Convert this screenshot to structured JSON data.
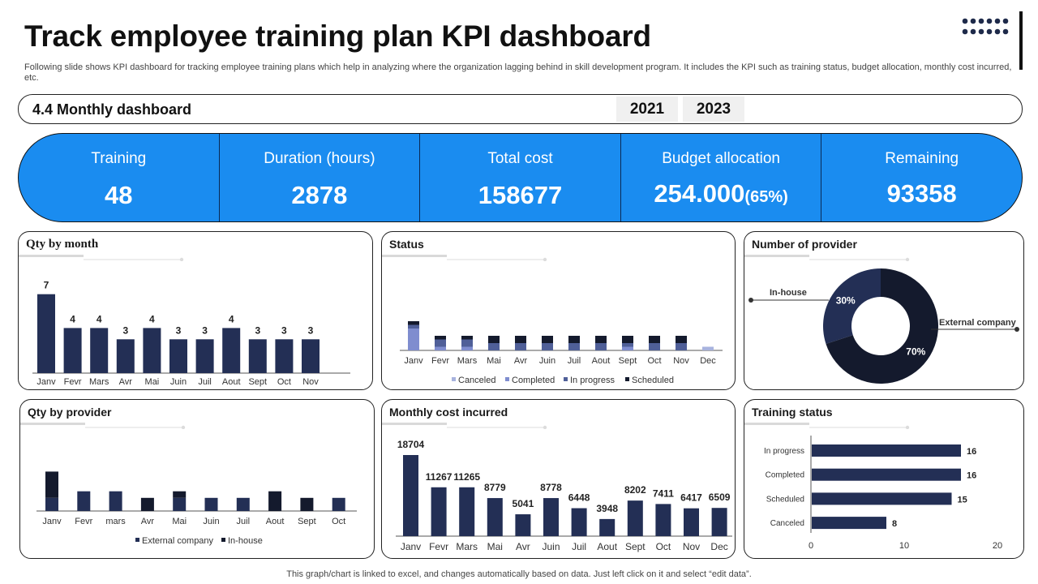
{
  "title": "Track employee training plan KPI dashboard",
  "subtitle": "Following slide shows KPI dashboard for tracking employee training plans which help in analyzing where the organization lagging behind in skill development program. It includes the KPI such as training status, budget allocation, monthly cost incurred, etc.",
  "header": {
    "label": "4.4 Monthly dashboard",
    "years": [
      "2021",
      "2023"
    ]
  },
  "kpis": [
    {
      "label": "Training",
      "value": "48"
    },
    {
      "label": "Duration (hours)",
      "value": "2878"
    },
    {
      "label": "Total cost",
      "value": "158677"
    },
    {
      "label": "Budget allocation",
      "value": "254.000",
      "pct": "(65%)"
    },
    {
      "label": "Remaining",
      "value": "93358"
    }
  ],
  "panels": {
    "qty_month": "Qty by  month",
    "status": "Status",
    "provider": "Number of provider",
    "qty_provider": "Qty by provider",
    "monthly_cost": "Monthly cost incurred",
    "training_status": "Training status"
  },
  "colors": {
    "navy": "#232f55",
    "dark": "#141a2d",
    "mid": "#4f5f98",
    "light": "#7f8dcf",
    "pale": "#a8b3de",
    "accent": "#1a8cf0"
  },
  "footer": "This graph/chart is linked to excel,  and changes automatically based on data. Just left click on it and select “edit data”.",
  "chart_data": [
    {
      "id": "qty_by_month",
      "type": "bar",
      "title": "Qty by  month",
      "categories": [
        "Janv",
        "Fevr",
        "Mars",
        "Avr",
        "Mai",
        "Juin",
        "Juil",
        "Aout",
        "Sept",
        "Oct",
        "Nov"
      ],
      "values": [
        7,
        4,
        4,
        3,
        4,
        3,
        3,
        4,
        3,
        3,
        3
      ],
      "ylim": [
        0,
        7
      ]
    },
    {
      "id": "status",
      "type": "bar",
      "stacked": true,
      "title": "Status",
      "categories": [
        "Janv",
        "Fevr",
        "Mars",
        "Mai",
        "Avr",
        "Juin",
        "Juil",
        "Aout",
        "Sept",
        "Oct",
        "Nov",
        "Dec"
      ],
      "series": [
        {
          "name": "Canceled",
          "values": [
            0,
            0,
            0,
            0,
            0,
            0,
            0,
            0,
            0,
            0,
            0,
            1
          ]
        },
        {
          "name": "Completed",
          "values": [
            6,
            1,
            1,
            0,
            0,
            0,
            0,
            0,
            1,
            0,
            0,
            0
          ]
        },
        {
          "name": "In progress",
          "values": [
            1,
            2,
            2,
            2,
            2,
            2,
            2,
            2,
            1,
            2,
            2,
            0
          ]
        },
        {
          "name": "Scheduled",
          "values": [
            1,
            1,
            1,
            2,
            2,
            2,
            2,
            2,
            2,
            2,
            2,
            0
          ]
        }
      ],
      "legend": "bottom"
    },
    {
      "id": "number_of_provider",
      "type": "pie",
      "title": "Number of provider",
      "labels": [
        "In-house",
        "External company"
      ],
      "values": [
        30,
        70
      ],
      "value_labels": [
        "30%",
        "70%"
      ]
    },
    {
      "id": "qty_by_provider",
      "type": "bar",
      "stacked": true,
      "title": "Qty by provider",
      "categories": [
        "Janv",
        "Fevr",
        "mars",
        "Avr",
        "Mai",
        "Juin",
        "Juil",
        "Aout",
        "Sept",
        "Oct"
      ],
      "series": [
        {
          "name": "External company",
          "values": [
            2,
            3,
            3,
            0,
            2,
            2,
            2,
            0,
            0,
            2
          ]
        },
        {
          "name": "In-house",
          "values": [
            4,
            0,
            0,
            2,
            1,
            0,
            0,
            3,
            2,
            0
          ]
        }
      ],
      "legend": "bottom"
    },
    {
      "id": "monthly_cost_incurred",
      "type": "bar",
      "title": "Monthly cost incurred",
      "categories": [
        "Janv",
        "Fevr",
        "Mars",
        "Mai",
        "Avr",
        "Juin",
        "Juil",
        "Aout",
        "Sept",
        "Oct",
        "Nov",
        "Dec"
      ],
      "values": [
        18704,
        11267,
        11265,
        8779,
        5041,
        8778,
        6448,
        3948,
        8202,
        7411,
        6417,
        6509
      ],
      "ylim": [
        0,
        18704
      ]
    },
    {
      "id": "training_status",
      "type": "bar",
      "orientation": "horizontal",
      "title": "Training status",
      "categories": [
        "In progress",
        "Completed",
        "Scheduled",
        "Canceled"
      ],
      "values": [
        16,
        16,
        15,
        8
      ],
      "xticks": [
        "0",
        "10",
        "20"
      ],
      "xlim": [
        0,
        20
      ]
    }
  ]
}
